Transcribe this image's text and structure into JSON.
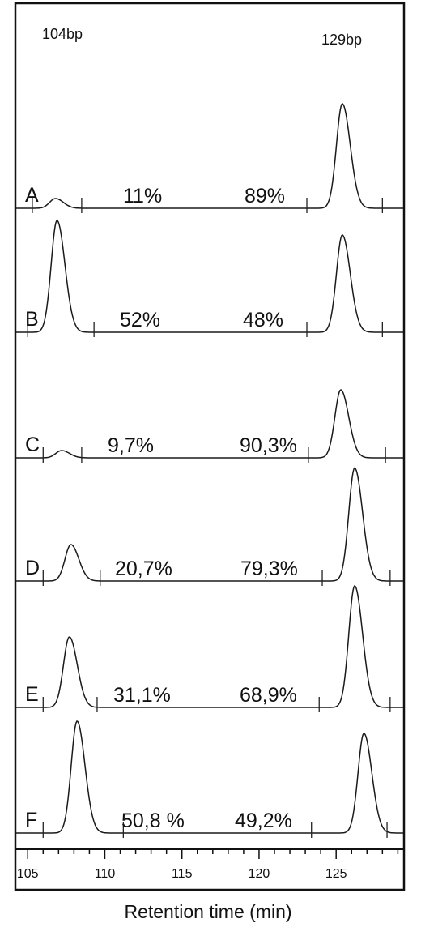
{
  "chart_data": {
    "type": "line",
    "xlabel": "Retention time (min)",
    "x_ticks": [
      105,
      110,
      115,
      120,
      125
    ],
    "xlim": [
      104.2,
      129.4
    ],
    "peak_labels": [
      {
        "text": "104bp"
      },
      {
        "text": "129bp"
      }
    ],
    "series": [
      {
        "name": "A",
        "peaks": [
          {
            "x": 106.8,
            "height": 0.08
          },
          {
            "x": 125.4,
            "height": 0.86
          }
        ],
        "percent_104bp": "11%",
        "percent_129bp": "89%",
        "markers": [
          105.3,
          108.5,
          123.1,
          128.0
        ]
      },
      {
        "name": "B",
        "peaks": [
          {
            "x": 106.9,
            "height": 0.92
          },
          {
            "x": 125.4,
            "height": 0.8
          }
        ],
        "percent_104bp": "52%",
        "percent_129bp": "48%",
        "markers": [
          105.0,
          109.3,
          123.1,
          128.0
        ]
      },
      {
        "name": "C",
        "peaks": [
          {
            "x": 107.2,
            "height": 0.06
          },
          {
            "x": 125.3,
            "height": 0.56
          }
        ],
        "percent_104bp": "9,7%",
        "percent_129bp": "90,3%",
        "markers": [
          106.0,
          108.5,
          123.2,
          128.2
        ]
      },
      {
        "name": "D",
        "peaks": [
          {
            "x": 107.8,
            "height": 0.3
          },
          {
            "x": 126.2,
            "height": 0.93
          }
        ],
        "percent_104bp": "20,7%",
        "percent_129bp": "79,3%",
        "markers": [
          106.0,
          109.7,
          124.1,
          128.5
        ]
      },
      {
        "name": "E",
        "peaks": [
          {
            "x": 107.7,
            "height": 0.58
          },
          {
            "x": 126.2,
            "height": 1.0
          }
        ],
        "percent_104bp": "31,1%",
        "percent_129bp": "68,9%",
        "markers": [
          106.0,
          109.5,
          123.9,
          128.5
        ]
      },
      {
        "name": "F",
        "peaks": [
          {
            "x": 108.2,
            "height": 0.92
          },
          {
            "x": 126.8,
            "height": 0.82
          }
        ],
        "percent_104bp": "50,8 %",
        "percent_129bp": "49,2%",
        "markers": [
          106.0,
          111.2,
          123.4,
          128.3
        ]
      }
    ]
  }
}
